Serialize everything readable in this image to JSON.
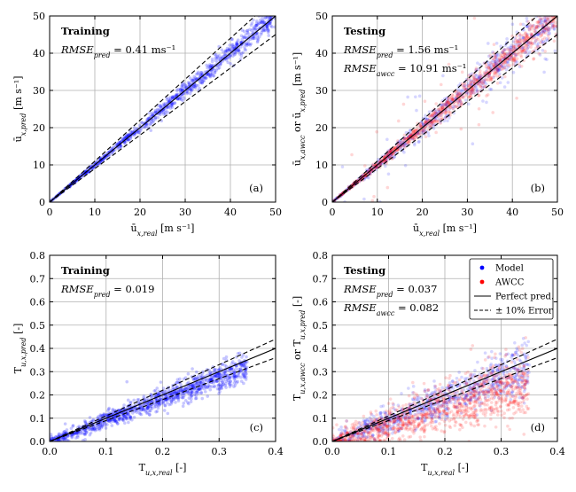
{
  "chart_data": [
    {
      "type": "scatter",
      "panel_label": "(a)",
      "annotation_title": "Training",
      "annotation_lines": [
        "RMSE_pred = 0.41 ms⁻¹"
      ],
      "xlabel": "ū_x,real [m s⁻¹]",
      "ylabel": "ū_x,pred [m s⁻¹]",
      "xlim": [
        0,
        50
      ],
      "ylim": [
        0,
        50
      ],
      "xticks": [
        0,
        10,
        20,
        30,
        40,
        50
      ],
      "yticks": [
        0,
        10,
        20,
        30,
        40,
        50
      ],
      "xticklabels": [
        "0",
        "10",
        "20",
        "30",
        "40",
        "50"
      ],
      "yticklabels": [
        "0",
        "10",
        "20",
        "30",
        "40",
        "50"
      ],
      "grid": true,
      "series": [
        {
          "name": "Model",
          "color": "#0000ff",
          "distribution": {
            "x_range": [
              0,
              50
            ],
            "slope": 1.0,
            "rel_spread": 0.035,
            "n": 900,
            "outlier_frac": 0.0
          }
        }
      ],
      "ref_lines": {
        "perfect": 1.0,
        "error_band": 0.1
      }
    },
    {
      "type": "scatter",
      "panel_label": "(b)",
      "annotation_title": "Testing",
      "annotation_lines": [
        "RMSE_pred = 1.56 ms⁻¹",
        "RMSE_awcc = 10.91 ms⁻¹"
      ],
      "xlabel": "ū_x,real [m s⁻¹]",
      "ylabel": "ū_x,awcc or ū_x,pred [m s⁻¹]",
      "xlim": [
        0,
        50
      ],
      "ylim": [
        0,
        50
      ],
      "xticks": [
        0,
        10,
        20,
        30,
        40,
        50
      ],
      "yticks": [
        0,
        10,
        20,
        30,
        40,
        50
      ],
      "xticklabels": [
        "0",
        "10",
        "20",
        "30",
        "40",
        "50"
      ],
      "yticklabels": [
        "0",
        "10",
        "20",
        "30",
        "40",
        "50"
      ],
      "grid": true,
      "series": [
        {
          "name": "Model",
          "color": "#0000ff",
          "distribution": {
            "x_range": [
              0,
              50
            ],
            "slope": 1.0,
            "rel_spread": 0.06,
            "n": 700,
            "outlier_frac": 0.06
          }
        },
        {
          "name": "AWCC",
          "color": "#ff0000",
          "distribution": {
            "x_range": [
              0,
              50
            ],
            "slope": 1.0,
            "rel_spread": 0.05,
            "n": 900,
            "outlier_frac": 0.04
          }
        }
      ],
      "ref_lines": {
        "perfect": 1.0,
        "error_band": 0.1
      }
    },
    {
      "type": "scatter",
      "panel_label": "(c)",
      "annotation_title": "Training",
      "annotation_lines": [
        "RMSE_pred = 0.019"
      ],
      "xlabel": "T_u,x,real [-]",
      "ylabel": "T_u,x,pred [-]",
      "xlim": [
        0,
        0.4
      ],
      "ylim": [
        0,
        0.8
      ],
      "xticks": [
        0,
        0.1,
        0.2,
        0.3,
        0.4
      ],
      "yticks": [
        0,
        0.1,
        0.2,
        0.3,
        0.4,
        0.5,
        0.6,
        0.7,
        0.8
      ],
      "xticklabels": [
        "0.0",
        "0.1",
        "0.2",
        "0.3",
        "0.4"
      ],
      "yticklabels": [
        "0.0",
        "0.1",
        "0.2",
        "0.3",
        "0.4",
        "0.5",
        "0.6",
        "0.7",
        "0.8"
      ],
      "grid": true,
      "series": [
        {
          "name": "Model",
          "color": "#0000ff",
          "distribution": {
            "x_range": [
              0,
              0.35
            ],
            "slope": 0.92,
            "abs_spread": 0.025,
            "n": 1100,
            "outlier_frac": 0.03
          }
        }
      ],
      "ref_lines": {
        "perfect": 1.0,
        "error_band": 0.1
      }
    },
    {
      "type": "scatter",
      "panel_label": "(d)",
      "annotation_title": "Testing",
      "annotation_lines": [
        "RMSE_pred = 0.037",
        "RMSE_awcc = 0.082"
      ],
      "xlabel": "T_u,x,real [-]",
      "ylabel": "T_u,x,awcc or T_u,x,pred [-]",
      "xlim": [
        0,
        0.4
      ],
      "ylim": [
        0,
        0.8
      ],
      "xticks": [
        0,
        0.1,
        0.2,
        0.3,
        0.4
      ],
      "yticks": [
        0,
        0.1,
        0.2,
        0.3,
        0.4,
        0.5,
        0.6,
        0.7,
        0.8
      ],
      "xticklabels": [
        "0.0",
        "0.1",
        "0.2",
        "0.3",
        "0.4"
      ],
      "yticklabels": [
        "0.0",
        "0.1",
        "0.2",
        "0.3",
        "0.4",
        "0.5",
        "0.6",
        "0.7",
        "0.8"
      ],
      "grid": true,
      "series": [
        {
          "name": "Model",
          "color": "#0000ff",
          "distribution": {
            "x_range": [
              0,
              0.35
            ],
            "slope": 0.92,
            "abs_spread": 0.045,
            "n": 800,
            "outlier_frac": 0.06
          }
        },
        {
          "name": "AWCC",
          "color": "#ff0000",
          "distribution": {
            "x_range": [
              0,
              0.35
            ],
            "slope": 0.72,
            "abs_spread": 0.06,
            "n": 1100,
            "outlier_frac": 0.08
          }
        }
      ],
      "ref_lines": {
        "perfect": 1.0,
        "error_band": 0.1
      },
      "legend": {
        "placement": "top-right",
        "entries": [
          {
            "label": "Model",
            "kind": "marker",
            "color": "#0000ff"
          },
          {
            "label": "AWCC",
            "kind": "marker",
            "color": "#ff0000"
          },
          {
            "label": "Perfect pred.",
            "kind": "solid"
          },
          {
            "label": "± 10% Error",
            "kind": "dashed"
          }
        ]
      }
    }
  ]
}
